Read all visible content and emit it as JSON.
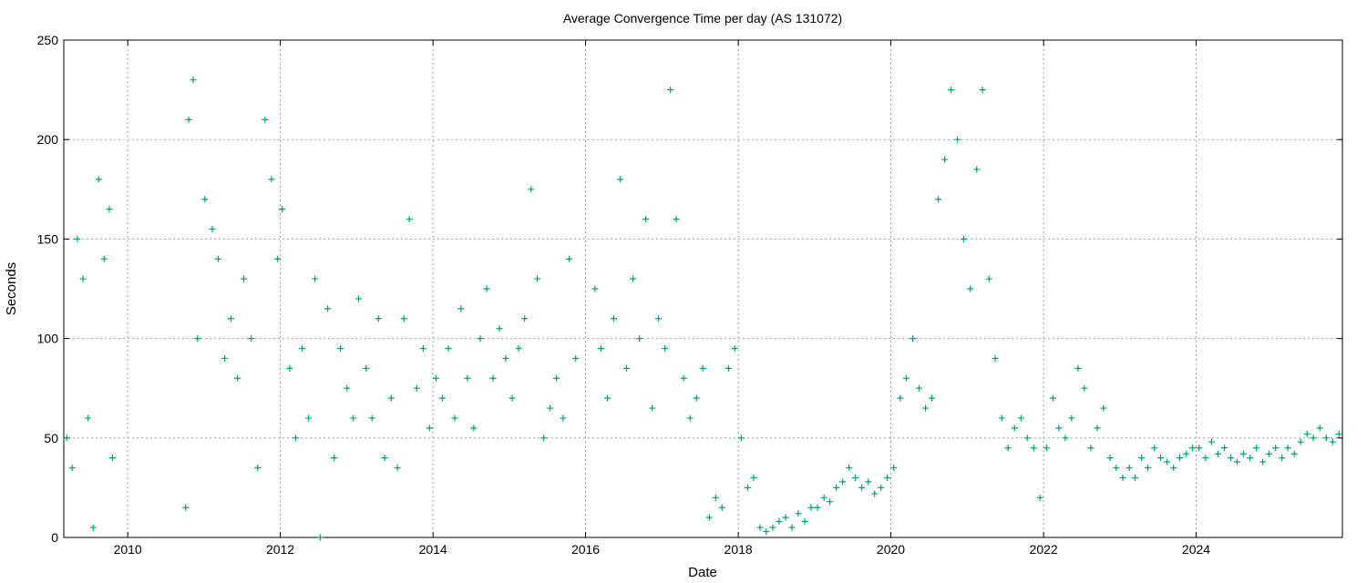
{
  "chart_data": {
    "type": "scatter",
    "title": "Average Convergence Time per day (AS 131072)",
    "xlabel": "Date",
    "ylabel": "Seconds",
    "xlim": [
      "2009-03-01",
      "2025-12-01"
    ],
    "ylim": [
      0,
      250
    ],
    "x_ticks": [
      "2010",
      "2012",
      "2014",
      "2016",
      "2018",
      "2020",
      "2022",
      "2024"
    ],
    "y_ticks": [
      0,
      50,
      100,
      150,
      200,
      250
    ],
    "grid": true,
    "marker": "plus",
    "color": "#009e73",
    "series": [
      {
        "points": [
          [
            "2009-03-15",
            50
          ],
          [
            "2009-04-10",
            35
          ],
          [
            "2009-05-05",
            150
          ],
          [
            "2009-06-01",
            130
          ],
          [
            "2009-06-25",
            60
          ],
          [
            "2009-07-20",
            5
          ],
          [
            "2009-08-15",
            180
          ],
          [
            "2009-09-10",
            140
          ],
          [
            "2009-10-05",
            165
          ],
          [
            "2009-10-20",
            40
          ],
          [
            "2010-10-05",
            15
          ],
          [
            "2010-10-20",
            210
          ],
          [
            "2010-11-10",
            230
          ],
          [
            "2010-12-01",
            100
          ],
          [
            "2011-01-05",
            170
          ],
          [
            "2011-02-10",
            155
          ],
          [
            "2011-03-10",
            140
          ],
          [
            "2011-04-10",
            90
          ],
          [
            "2011-05-10",
            110
          ],
          [
            "2011-06-10",
            80
          ],
          [
            "2011-07-10",
            130
          ],
          [
            "2011-08-15",
            100
          ],
          [
            "2011-09-15",
            35
          ],
          [
            "2011-10-20",
            210
          ],
          [
            "2011-11-20",
            180
          ],
          [
            "2011-12-20",
            140
          ],
          [
            "2012-01-10",
            165
          ],
          [
            "2012-02-15",
            85
          ],
          [
            "2012-03-15",
            50
          ],
          [
            "2012-04-15",
            95
          ],
          [
            "2012-05-15",
            60
          ],
          [
            "2012-06-15",
            130
          ],
          [
            "2012-07-10",
            0
          ],
          [
            "2012-08-15",
            115
          ],
          [
            "2012-09-15",
            40
          ],
          [
            "2012-10-15",
            95
          ],
          [
            "2012-11-15",
            75
          ],
          [
            "2012-12-15",
            60
          ],
          [
            "2013-01-10",
            120
          ],
          [
            "2013-02-15",
            85
          ],
          [
            "2013-03-15",
            60
          ],
          [
            "2013-04-15",
            110
          ],
          [
            "2013-05-15",
            40
          ],
          [
            "2013-06-15",
            70
          ],
          [
            "2013-07-15",
            35
          ],
          [
            "2013-08-15",
            110
          ],
          [
            "2013-09-10",
            160
          ],
          [
            "2013-10-15",
            75
          ],
          [
            "2013-11-15",
            95
          ],
          [
            "2013-12-15",
            55
          ],
          [
            "2014-01-15",
            80
          ],
          [
            "2014-02-15",
            70
          ],
          [
            "2014-03-15",
            95
          ],
          [
            "2014-04-15",
            60
          ],
          [
            "2014-05-15",
            115
          ],
          [
            "2014-06-15",
            80
          ],
          [
            "2014-07-15",
            55
          ],
          [
            "2014-08-15",
            100
          ],
          [
            "2014-09-15",
            125
          ],
          [
            "2014-10-15",
            80
          ],
          [
            "2014-11-15",
            105
          ],
          [
            "2014-12-15",
            90
          ],
          [
            "2015-01-15",
            70
          ],
          [
            "2015-02-15",
            95
          ],
          [
            "2015-03-15",
            110
          ],
          [
            "2015-04-15",
            175
          ],
          [
            "2015-05-15",
            130
          ],
          [
            "2015-06-15",
            50
          ],
          [
            "2015-07-15",
            65
          ],
          [
            "2015-08-15",
            80
          ],
          [
            "2015-09-15",
            60
          ],
          [
            "2015-10-15",
            140
          ],
          [
            "2015-11-15",
            90
          ],
          [
            "2016-02-15",
            125
          ],
          [
            "2016-03-15",
            95
          ],
          [
            "2016-04-15",
            70
          ],
          [
            "2016-05-15",
            110
          ],
          [
            "2016-06-15",
            180
          ],
          [
            "2016-07-15",
            85
          ],
          [
            "2016-08-15",
            130
          ],
          [
            "2016-09-15",
            100
          ],
          [
            "2016-10-15",
            160
          ],
          [
            "2016-11-15",
            65
          ],
          [
            "2016-12-15",
            110
          ],
          [
            "2017-01-15",
            95
          ],
          [
            "2017-02-10",
            225
          ],
          [
            "2017-03-10",
            160
          ],
          [
            "2017-04-15",
            80
          ],
          [
            "2017-05-15",
            60
          ],
          [
            "2017-06-15",
            70
          ],
          [
            "2017-07-15",
            85
          ],
          [
            "2017-08-15",
            10
          ],
          [
            "2017-09-15",
            20
          ],
          [
            "2017-10-15",
            15
          ],
          [
            "2017-11-15",
            85
          ],
          [
            "2017-12-15",
            95
          ],
          [
            "2018-01-15",
            50
          ],
          [
            "2018-02-15",
            25
          ],
          [
            "2018-03-15",
            30
          ],
          [
            "2018-04-15",
            5
          ],
          [
            "2018-05-15",
            3
          ],
          [
            "2018-06-15",
            5
          ],
          [
            "2018-07-15",
            8
          ],
          [
            "2018-08-15",
            10
          ],
          [
            "2018-09-15",
            5
          ],
          [
            "2018-10-15",
            12
          ],
          [
            "2018-11-15",
            8
          ],
          [
            "2018-12-15",
            15
          ],
          [
            "2019-01-15",
            15
          ],
          [
            "2019-02-15",
            20
          ],
          [
            "2019-03-15",
            18
          ],
          [
            "2019-04-15",
            25
          ],
          [
            "2019-05-15",
            28
          ],
          [
            "2019-06-15",
            35
          ],
          [
            "2019-07-15",
            30
          ],
          [
            "2019-08-15",
            25
          ],
          [
            "2019-09-15",
            28
          ],
          [
            "2019-10-15",
            22
          ],
          [
            "2019-11-15",
            25
          ],
          [
            "2019-12-15",
            30
          ],
          [
            "2020-01-15",
            35
          ],
          [
            "2020-02-15",
            70
          ],
          [
            "2020-03-15",
            80
          ],
          [
            "2020-04-15",
            100
          ],
          [
            "2020-05-15",
            75
          ],
          [
            "2020-06-15",
            65
          ],
          [
            "2020-07-15",
            70
          ],
          [
            "2020-08-15",
            170
          ],
          [
            "2020-09-15",
            190
          ],
          [
            "2020-10-15",
            225
          ],
          [
            "2020-11-15",
            200
          ],
          [
            "2020-12-15",
            150
          ],
          [
            "2021-01-15",
            125
          ],
          [
            "2021-02-15",
            185
          ],
          [
            "2021-03-15",
            225
          ],
          [
            "2021-04-15",
            130
          ],
          [
            "2021-05-15",
            90
          ],
          [
            "2021-06-15",
            60
          ],
          [
            "2021-07-15",
            45
          ],
          [
            "2021-08-15",
            55
          ],
          [
            "2021-09-15",
            60
          ],
          [
            "2021-10-15",
            50
          ],
          [
            "2021-11-15",
            45
          ],
          [
            "2021-12-15",
            20
          ],
          [
            "2022-01-15",
            45
          ],
          [
            "2022-02-15",
            70
          ],
          [
            "2022-03-15",
            55
          ],
          [
            "2022-04-15",
            50
          ],
          [
            "2022-05-15",
            60
          ],
          [
            "2022-06-15",
            85
          ],
          [
            "2022-07-15",
            75
          ],
          [
            "2022-08-15",
            45
          ],
          [
            "2022-09-15",
            55
          ],
          [
            "2022-10-15",
            65
          ],
          [
            "2022-11-15",
            40
          ],
          [
            "2022-12-15",
            35
          ],
          [
            "2023-01-15",
            30
          ],
          [
            "2023-02-15",
            35
          ],
          [
            "2023-03-15",
            30
          ],
          [
            "2023-04-15",
            40
          ],
          [
            "2023-05-15",
            35
          ],
          [
            "2023-06-15",
            45
          ],
          [
            "2023-07-15",
            40
          ],
          [
            "2023-08-15",
            38
          ],
          [
            "2023-09-15",
            35
          ],
          [
            "2023-10-15",
            40
          ],
          [
            "2023-11-15",
            42
          ],
          [
            "2023-12-15",
            45
          ],
          [
            "2024-01-15",
            45
          ],
          [
            "2024-02-15",
            40
          ],
          [
            "2024-03-15",
            48
          ],
          [
            "2024-04-15",
            42
          ],
          [
            "2024-05-15",
            45
          ],
          [
            "2024-06-15",
            40
          ],
          [
            "2024-07-15",
            38
          ],
          [
            "2024-08-15",
            42
          ],
          [
            "2024-09-15",
            40
          ],
          [
            "2024-10-15",
            45
          ],
          [
            "2024-11-15",
            38
          ],
          [
            "2024-12-15",
            42
          ],
          [
            "2025-01-15",
            45
          ],
          [
            "2025-02-15",
            40
          ],
          [
            "2025-03-15",
            45
          ],
          [
            "2025-04-15",
            42
          ],
          [
            "2025-05-15",
            48
          ],
          [
            "2025-06-15",
            52
          ],
          [
            "2025-07-15",
            50
          ],
          [
            "2025-08-15",
            55
          ],
          [
            "2025-09-15",
            50
          ],
          [
            "2025-10-15",
            48
          ],
          [
            "2025-11-15",
            52
          ]
        ]
      }
    ]
  }
}
